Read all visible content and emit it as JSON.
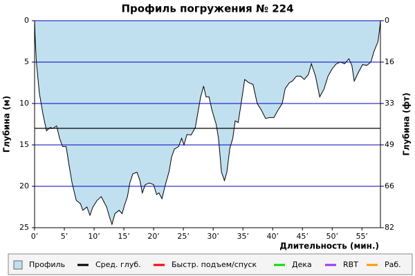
{
  "chart_data": {
    "type": "area",
    "title": "Профиль погружения № 224",
    "x_label": "Длительность (мин.)",
    "y_label": "Глубина (м)",
    "y2_label": "Глубина (фт)",
    "x": [
      0,
      0.1,
      0.3,
      0.8,
      1.4,
      2.0,
      2.6,
      3.1,
      3.7,
      4.2,
      4.7,
      5.3,
      5.8,
      6.3,
      7.0,
      7.7,
      8.1,
      8.8,
      9.3,
      9.8,
      10.5,
      11.2,
      11.6,
      12.1,
      12.6,
      13.0,
      13.5,
      14.2,
      14.7,
      15.1,
      15.6,
      16.0,
      16.5,
      17.2,
      17.7,
      18.1,
      18.6,
      19.3,
      20.0,
      20.5,
      20.9,
      21.4,
      21.9,
      22.6,
      23.0,
      23.5,
      24.2,
      24.7,
      25.1,
      25.6,
      26.3,
      27.0,
      27.4,
      27.9,
      28.4,
      28.8,
      29.3,
      29.8,
      30.5,
      30.9,
      31.4,
      31.9,
      32.3,
      32.8,
      33.3,
      33.7,
      34.2,
      34.7,
      35.3,
      36.0,
      36.7,
      37.4,
      38.1,
      38.8,
      39.5,
      40.2,
      40.9,
      41.6,
      42.1,
      42.8,
      43.3,
      44.0,
      44.7,
      45.3,
      46.0,
      46.5,
      47.2,
      47.9,
      48.6,
      49.3,
      50.0,
      50.7,
      51.4,
      52.1,
      52.8,
      53.3,
      53.7,
      54.4,
      55.1,
      55.8,
      56.5,
      57.0,
      57.7,
      58.0,
      58.1
    ],
    "values": [
      0,
      2.1,
      5,
      8.75,
      11.25,
      13.3,
      12.9,
      13,
      12.7,
      14.2,
      15.2,
      15.2,
      17.5,
      19.6,
      21.7,
      22.1,
      22.9,
      22.5,
      23.5,
      22.5,
      21.7,
      21.25,
      21.8,
      22.5,
      23.75,
      24.6,
      23.3,
      22.9,
      23.3,
      22.3,
      21.25,
      19.6,
      18.5,
      18.3,
      19.3,
      20.8,
      19.8,
      19.6,
      19.8,
      21,
      20.8,
      21.5,
      20,
      18.2,
      16.5,
      15.5,
      15.2,
      14.2,
      15,
      13.75,
      13.8,
      12.9,
      11.25,
      9.2,
      7.9,
      9.2,
      9.2,
      10.8,
      12.5,
      14.2,
      18.3,
      19.3,
      18.3,
      15.4,
      14.2,
      12.1,
      12.3,
      10,
      7.1,
      7.5,
      7.7,
      10,
      10.8,
      11.8,
      11.7,
      11.7,
      10.8,
      10,
      8.2,
      7.5,
      7.3,
      6.7,
      6.7,
      7.1,
      6.5,
      5.2,
      6.7,
      9.2,
      8.3,
      6.7,
      5.8,
      5.2,
      5,
      5.2,
      4.6,
      5.4,
      7.3,
      6.25,
      5.3,
      5.4,
      5,
      3.75,
      2.5,
      0.8,
      0
    ],
    "average_depth": 13,
    "color": "#c0e0f0",
    "grid_color": "#0000c0",
    "legend": [
      {
        "name": "Профиль",
        "color": "#c0e0f0",
        "symbol": "box"
      },
      {
        "name": "Сред. глуб.",
        "color": "#000000",
        "symbol": "line"
      },
      {
        "name": "Быстр. подъем/спуск",
        "color": "#ff0000",
        "symbol": "line"
      },
      {
        "name": "Дека",
        "color": "#00e000",
        "symbol": "line"
      },
      {
        "name": "RBT",
        "color": "#9933ff",
        "symbol": "line"
      },
      {
        "name": "Раб.",
        "color": "#ff9900",
        "symbol": "line"
      }
    ],
    "xlim": [
      0,
      58.1
    ],
    "xticks": [
      {
        "value": 0,
        "label": "0’"
      },
      {
        "value": 5,
        "label": "5’"
      },
      {
        "value": 10,
        "label": "10’"
      },
      {
        "value": 15,
        "label": "15’"
      },
      {
        "value": 20,
        "label": "20’"
      },
      {
        "value": 25,
        "label": "25’"
      },
      {
        "value": 30,
        "label": "30’"
      },
      {
        "value": 35,
        "label": "35’"
      },
      {
        "value": 40,
        "label": "40’"
      },
      {
        "value": 45,
        "label": "45’"
      },
      {
        "value": 50,
        "label": "50’"
      },
      {
        "value": 55,
        "label": "55’"
      }
    ],
    "ylim": [
      0,
      25
    ],
    "y_inverted": true,
    "yticks": [
      0,
      5,
      10,
      15,
      20,
      25
    ],
    "y2lim": [
      0,
      82.02
    ],
    "y2ticks": [
      0,
      {
        "value": 16.4,
        "label": "16"
      },
      {
        "value": 32.8,
        "label": "33"
      },
      {
        "value": 49.2,
        "label": "49"
      },
      {
        "value": 65.6,
        "label": "66"
      },
      {
        "value": 82.02,
        "label": "82"
      }
    ],
    "grid": true
  }
}
